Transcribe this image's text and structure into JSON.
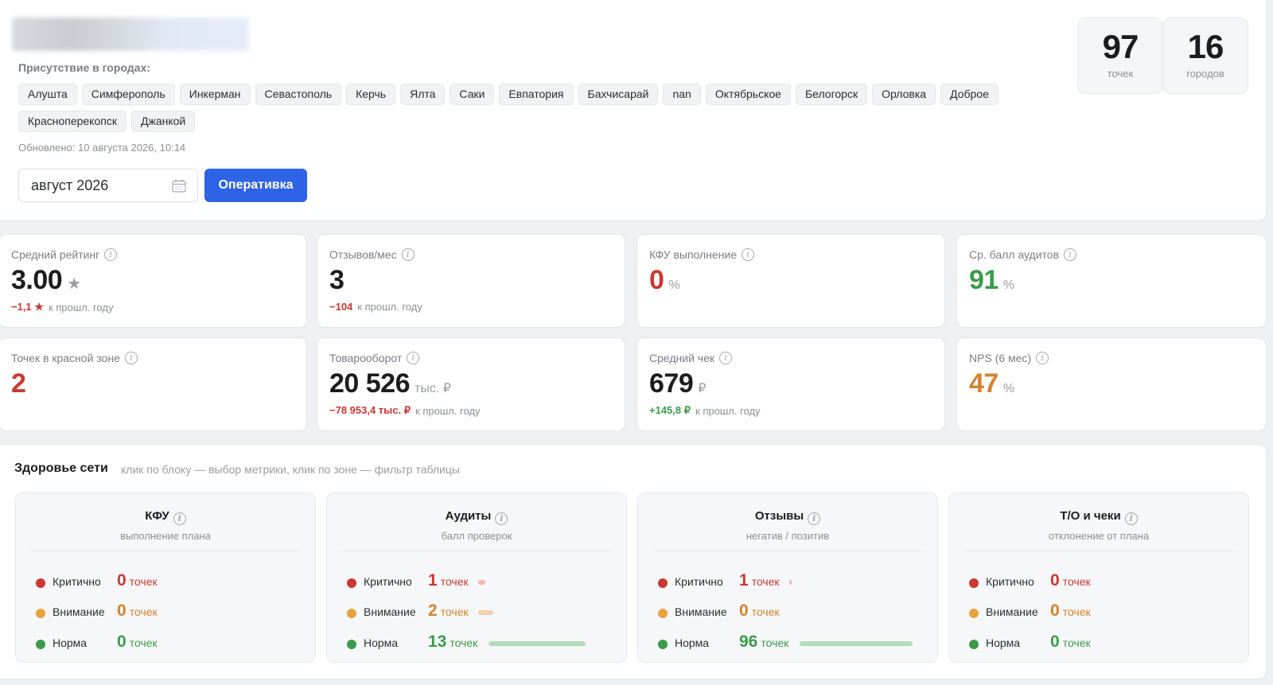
{
  "header": {
    "presence_label": "Присутствие в городах:",
    "cities": [
      "Алушта",
      "Симферополь",
      "Инкерман",
      "Севастополь",
      "Керчь",
      "Ялта",
      "Саки",
      "Евпатория",
      "Бахчисарай",
      "nan",
      "Октябрьское",
      "Белогорск",
      "Орловка",
      "Доброе",
      "Красноперекопск",
      "Джанкой"
    ],
    "updated": "Обновлено: 10 августа 2026, 10:14",
    "period_value": "август 2026",
    "button_label": "Оперативка",
    "stats": {
      "points": {
        "value": "97",
        "label": "точек"
      },
      "cities": {
        "value": "16",
        "label": "городов"
      }
    }
  },
  "kpis": {
    "rating": {
      "title": "Средний рейтинг",
      "value": "3.00",
      "unit": "★",
      "delta": "−1,1 ★",
      "delta_note": "к прошл. году"
    },
    "reviews": {
      "title": "Отзывов/мес",
      "value": "3",
      "delta": "−104",
      "delta_note": "к прошл. году"
    },
    "kfu": {
      "title": "КФУ выполнение",
      "value": "0",
      "unit": "%"
    },
    "audits": {
      "title": "Ср. балл аудитов",
      "value": "91",
      "unit": "%"
    },
    "red_zone": {
      "title": "Точек в красной зоне",
      "value": "2"
    },
    "turnover": {
      "title": "Товарооборот",
      "value": "20 526",
      "unit": "тыс. ₽",
      "delta": "−78 953,4 тыс. ₽",
      "delta_note": "к прошл. году"
    },
    "avg_check": {
      "title": "Средний чек",
      "value": "679",
      "unit": "₽",
      "delta": "+145,8 ₽",
      "delta_note": "к прошл. году"
    },
    "nps": {
      "title": "NPS (6 мес)",
      "value": "47",
      "unit": "%"
    }
  },
  "health": {
    "title": "Здоровье сети",
    "hint": "клик по блоку — выбор метрики, клик по зоне — фильтр таблицы",
    "zone_labels": {
      "critical": "Критично",
      "warning": "Внимание",
      "normal": "Норма"
    },
    "unit": "точек",
    "blocks": [
      {
        "title": "КФУ",
        "subtitle": "выполнение плана",
        "critical": "0",
        "warning": "0",
        "normal": "0",
        "share": {
          "critical": 0,
          "warning": 0,
          "normal": 0
        }
      },
      {
        "title": "Аудиты",
        "subtitle": "балл проверок",
        "critical": "1",
        "warning": "2",
        "normal": "13",
        "share": {
          "critical": 0.0625,
          "warning": 0.125,
          "normal": 0.8125
        }
      },
      {
        "title": "Отзывы",
        "subtitle": "негатив / позитив",
        "critical": "1",
        "warning": "0",
        "normal": "96",
        "share": {
          "critical": 0.0103,
          "warning": 0,
          "normal": 0.9897
        }
      },
      {
        "title": "Т/О и чеки",
        "subtitle": "отклонение от плана",
        "critical": "0",
        "warning": "0",
        "normal": "0",
        "share": {
          "critical": 0,
          "warning": 0,
          "normal": 0
        }
      }
    ]
  },
  "colors": {
    "accent": "#2f63e6",
    "critical": "#c93832",
    "warning": "#e8a33f",
    "normal": "#3d9a4b"
  }
}
